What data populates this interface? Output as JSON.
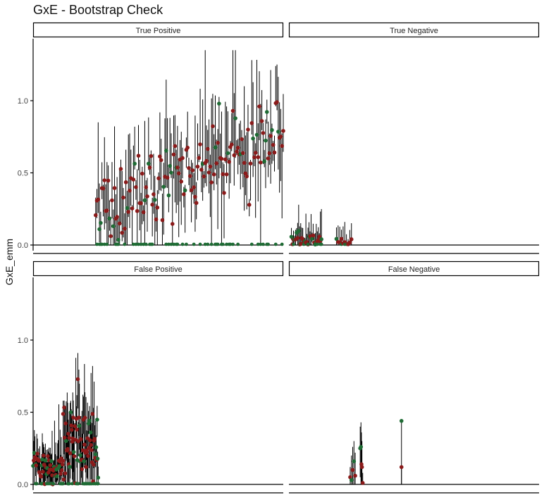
{
  "chart_data": {
    "type": "scatter",
    "title": "GxE - Bootstrap Check",
    "ylabel": "GxE_emm",
    "xlabel": "",
    "facets": [
      {
        "name": "True Positive",
        "ylim": [
          0,
          1.4
        ],
        "yticks": [
          0.0,
          0.5,
          1.0
        ],
        "tick_labels": [
          "0.0",
          "0.5",
          "1.0"
        ],
        "point_colors": [
          "#8b1a1a",
          "#1e6b34"
        ],
        "clusters": [
          {
            "x_range": [
              0.25,
              1.0
            ],
            "count": 150,
            "y_start": 0.25,
            "y_end": 0.78,
            "y_sd": 0.14,
            "err_sd": 0.25
          }
        ]
      },
      {
        "name": "True Negative",
        "ylim": [
          0,
          1.4
        ],
        "yticks": [
          0.0,
          0.5,
          1.0
        ],
        "tick_labels": [
          "0.0",
          "0.5",
          "1.0"
        ],
        "point_colors": [
          "#8b1a1a",
          "#1e6b34"
        ],
        "clusters": [
          {
            "x_range": [
              0.01,
              0.13
            ],
            "count": 30,
            "y_start": 0.03,
            "y_end": 0.03,
            "y_sd": 0.03,
            "err_sd": 0.09
          },
          {
            "x_range": [
              0.19,
              0.25
            ],
            "count": 10,
            "y_start": 0.02,
            "y_end": 0.02,
            "y_sd": 0.02,
            "err_sd": 0.1
          }
        ]
      },
      {
        "name": "False Positive",
        "ylim": [
          0,
          1.4
        ],
        "yticks": [
          0.0,
          0.5,
          1.0
        ],
        "tick_labels": [
          "0.0",
          "0.5",
          "1.0"
        ],
        "point_colors": [
          "#8b1a1a",
          "#1e6b34"
        ],
        "clusters": [
          {
            "x_range": [
              0.0,
              0.12
            ],
            "count": 50,
            "y_start": 0.14,
            "y_end": 0.1,
            "y_sd": 0.05,
            "err_sd": 0.13
          },
          {
            "x_range": [
              0.12,
              0.26
            ],
            "count": 70,
            "y_start": 0.35,
            "y_end": 0.2,
            "y_sd": 0.14,
            "err_sd": 0.23
          }
        ]
      },
      {
        "name": "False Negative",
        "ylim": [
          0,
          1.4
        ],
        "yticks": [
          0.0,
          0.5,
          1.0
        ],
        "tick_labels": [
          "0.0",
          "0.5",
          "1.0"
        ],
        "point_colors": [
          "#8b1a1a",
          "#1e6b34"
        ],
        "points": [
          {
            "x": 0.245,
            "y": 0.05,
            "lo": 0.0,
            "hi": 0.12,
            "color": "#8b1a1a"
          },
          {
            "x": 0.25,
            "y": 0.03,
            "lo": 0.0,
            "hi": 0.2,
            "color": "#1e6b34"
          },
          {
            "x": 0.255,
            "y": 0.1,
            "lo": 0.0,
            "hi": 0.26,
            "color": "#8b1a1a"
          },
          {
            "x": 0.26,
            "y": 0.16,
            "lo": 0.0,
            "hi": 0.3,
            "color": "#1e6b34"
          },
          {
            "x": 0.265,
            "y": 0.06,
            "lo": 0.0,
            "hi": 0.22,
            "color": "#8b1a1a"
          },
          {
            "x": 0.285,
            "y": 0.25,
            "lo": 0.05,
            "hi": 0.4,
            "color": "#1e6b34"
          },
          {
            "x": 0.288,
            "y": 0.26,
            "lo": 0.0,
            "hi": 0.43,
            "color": "#1e6b34"
          },
          {
            "x": 0.29,
            "y": 0.14,
            "lo": 0.0,
            "hi": 0.36,
            "color": "#8b1a1a"
          },
          {
            "x": 0.292,
            "y": 0.12,
            "lo": 0.0,
            "hi": 0.3,
            "color": "#8b1a1a"
          },
          {
            "x": 0.295,
            "y": 0.01,
            "lo": 0.0,
            "hi": 0.08,
            "color": "#8b1a1a"
          },
          {
            "x": 0.45,
            "y": 0.44,
            "lo": 0.0,
            "hi": 0.44,
            "color": "#1e6b34"
          },
          {
            "x": 0.45,
            "y": 0.12,
            "lo": 0.0,
            "hi": 0.12,
            "color": "#8b1a1a"
          }
        ]
      }
    ]
  }
}
